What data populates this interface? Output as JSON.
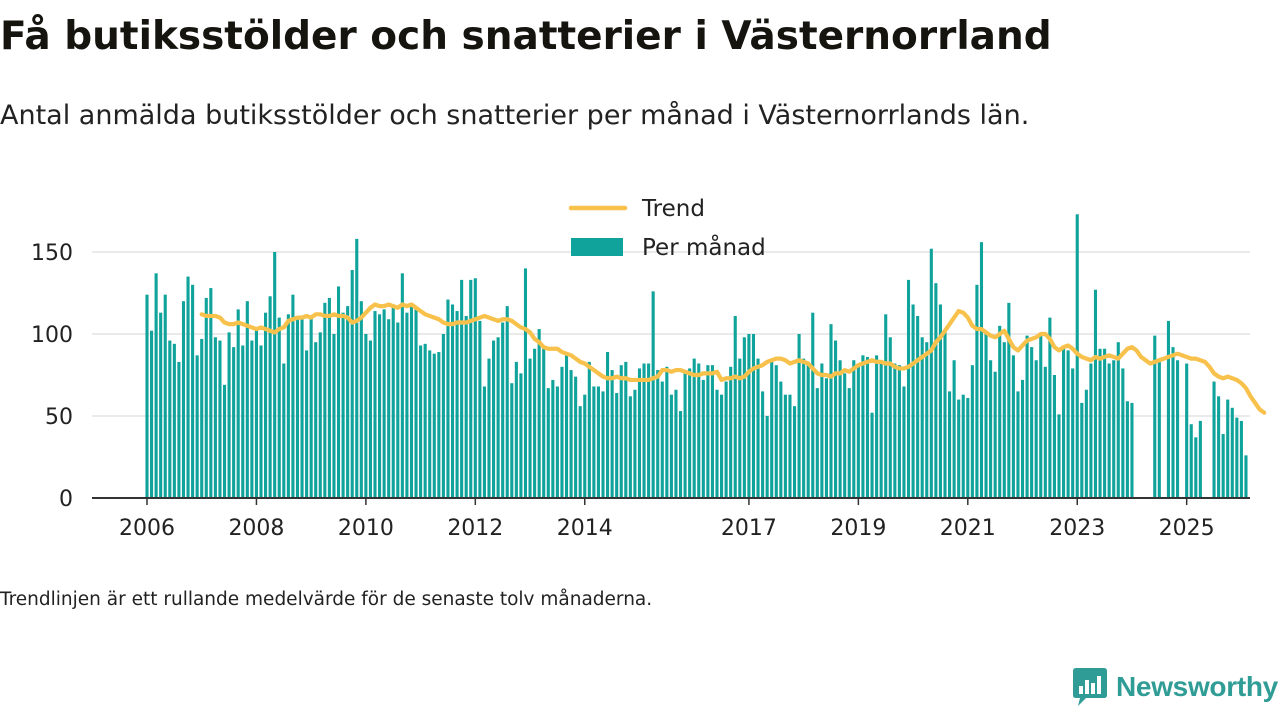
{
  "title": "Få butiksstölder och snatterier i Västernorrland",
  "subtitle": "Antal anmälda butiksstölder och snatterier per månad i Västernorrlands län.",
  "footnote": "Trendlinjen är ett rullande medelvärde för de senaste tolv månaderna.",
  "logo": {
    "text": "Newsworthy",
    "icon": "newsworthy-chart-bubble-icon",
    "color": "#2f9c95"
  },
  "colors": {
    "bar": "#0fa39b",
    "trend": "#f7c14c",
    "axis": "#333333",
    "grid": "#dddddd",
    "text": "#222222"
  },
  "chart_data": {
    "type": "bar",
    "x_start": "2006-01",
    "frequency": "monthly",
    "values": [
      124,
      102,
      137,
      113,
      124,
      96,
      94,
      83,
      120,
      135,
      130,
      87,
      97,
      122,
      128,
      98,
      96,
      69,
      101,
      92,
      115,
      93,
      120,
      96,
      103,
      93,
      113,
      123,
      150,
      110,
      82,
      112,
      124,
      110,
      111,
      90,
      111,
      95,
      101,
      119,
      122,
      100,
      129,
      113,
      117,
      139,
      158,
      120,
      100,
      96,
      114,
      112,
      115,
      109,
      117,
      107,
      137,
      113,
      118,
      116,
      93,
      94,
      90,
      88,
      89,
      100,
      121,
      118,
      114,
      133,
      111,
      133,
      134,
      108,
      68,
      85,
      96,
      98,
      107,
      117,
      70,
      83,
      76,
      140,
      85,
      91,
      103,
      92,
      67,
      72,
      68,
      80,
      87,
      78,
      74,
      56,
      63,
      83,
      68,
      68,
      65,
      89,
      78,
      64,
      81,
      83,
      62,
      66,
      79,
      82,
      82,
      126,
      78,
      71,
      80,
      63,
      66,
      53,
      77,
      79,
      85,
      82,
      72,
      81,
      81,
      66,
      63,
      71,
      80,
      111,
      85,
      98,
      100,
      100,
      85,
      65,
      50,
      83,
      81,
      71,
      63,
      63,
      56,
      100,
      85,
      82,
      113,
      67,
      82,
      73,
      106,
      96,
      84,
      76,
      67,
      84,
      82,
      87,
      86,
      52,
      87,
      82,
      112,
      98,
      82,
      81,
      68,
      133,
      118,
      111,
      98,
      95,
      152,
      131,
      118,
      101,
      65,
      84,
      60,
      63,
      61,
      81,
      130,
      156,
      100,
      84,
      77,
      105,
      95,
      119,
      87,
      65,
      72,
      99,
      92,
      84,
      100,
      80,
      110,
      75,
      51,
      91,
      90,
      79,
      173,
      58,
      66,
      82,
      127,
      91,
      91,
      82,
      84,
      95,
      79,
      59,
      58,
      null,
      null,
      null,
      null,
      99,
      84,
      null,
      108,
      92,
      84,
      null,
      82,
      45,
      37,
      47,
      null,
      null,
      71,
      62,
      39,
      60,
      55,
      49,
      47,
      26
    ],
    "trend": [
      null,
      null,
      null,
      null,
      null,
      null,
      null,
      null,
      null,
      null,
      null,
      null,
      112,
      111,
      111,
      111,
      110,
      107,
      106,
      106,
      107,
      106,
      105,
      104,
      103,
      104,
      103,
      102,
      101,
      103,
      104,
      108,
      109,
      110,
      110,
      111,
      110,
      112,
      112,
      111,
      111,
      112,
      111,
      111,
      110,
      107,
      108,
      110,
      113,
      116,
      118,
      117,
      117,
      118,
      117,
      116,
      118,
      117,
      118,
      116,
      114,
      112,
      111,
      110,
      109,
      107,
      106,
      106,
      107,
      107,
      107,
      108,
      109,
      110,
      111,
      110,
      109,
      108,
      109,
      109,
      108,
      106,
      104,
      103,
      101,
      97,
      95,
      92,
      91,
      91,
      91,
      89,
      88,
      87,
      85,
      83,
      82,
      80,
      78,
      76,
      74,
      73,
      73,
      74,
      73,
      73,
      72,
      72,
      72,
      72,
      72,
      73,
      74,
      78,
      78,
      77,
      78,
      78,
      77,
      76,
      75,
      75,
      76,
      76,
      76,
      77,
      72,
      73,
      73,
      74,
      73,
      74,
      77,
      79,
      80,
      81,
      83,
      84,
      85,
      85,
      84,
      82,
      83,
      84,
      83,
      82,
      79,
      76,
      75,
      75,
      74,
      76,
      76,
      78,
      77,
      79,
      81,
      82,
      83,
      84,
      83,
      83,
      82,
      82,
      80,
      79,
      79,
      80,
      82,
      84,
      86,
      88,
      90,
      95,
      98,
      102,
      106,
      110,
      114,
      113,
      110,
      105,
      103,
      103,
      101,
      99,
      98,
      100,
      102,
      97,
      92,
      90,
      93,
      96,
      97,
      98,
      100,
      100,
      97,
      92,
      90,
      92,
      93,
      91,
      88,
      86,
      85,
      84,
      86,
      85,
      86,
      87,
      86,
      85,
      88,
      91,
      92,
      90,
      86,
      84,
      82,
      83,
      84,
      85,
      86,
      87,
      88,
      87,
      86,
      85,
      85,
      84,
      83,
      80,
      76,
      74,
      73,
      74,
      73,
      72,
      70,
      67,
      62,
      58,
      54,
      52
    ],
    "ylim": [
      0,
      180
    ],
    "yticks": [
      0,
      50,
      100,
      150
    ],
    "xticks": [
      "2006",
      "2008",
      "2010",
      "2012",
      "2014",
      "2017",
      "2019",
      "2021",
      "2023",
      "2025"
    ],
    "xlabel": "",
    "ylabel": "",
    "grid": true,
    "legend": {
      "position": "top-center",
      "entries": [
        {
          "name": "Trend",
          "kind": "line"
        },
        {
          "name": "Per månad",
          "kind": "bar"
        }
      ]
    }
  }
}
